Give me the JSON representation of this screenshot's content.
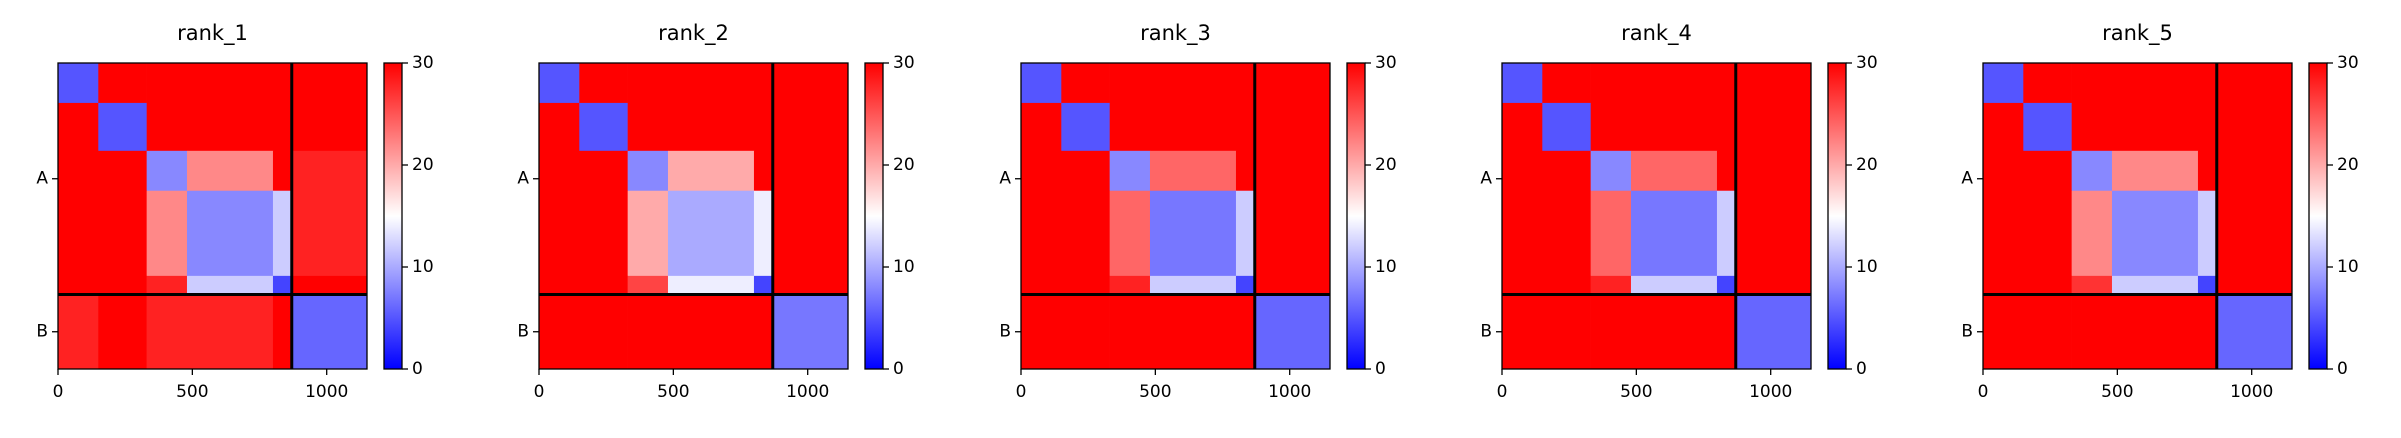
{
  "chart_data": [
    {
      "type": "heatmap",
      "title": "rank_1",
      "edges": [
        0,
        150,
        330,
        480,
        800,
        870,
        1150
      ],
      "z": [
        [
          5,
          30,
          30,
          30,
          30,
          30
        ],
        [
          30,
          5,
          30,
          30,
          30,
          30
        ],
        [
          30,
          30,
          8,
          22,
          30,
          28
        ],
        [
          30,
          30,
          22,
          8,
          12,
          28
        ],
        [
          30,
          30,
          28,
          12,
          4,
          30
        ],
        [
          28,
          30,
          28,
          28,
          30,
          6
        ]
      ],
      "xlim": [
        0,
        1150
      ],
      "ylim": [
        1150,
        0
      ],
      "xticks": [
        0,
        500,
        1000
      ],
      "yticks": [
        {
          "value": 435,
          "label": "A"
        },
        {
          "value": 1010,
          "label": "B"
        }
      ],
      "boundary": 870,
      "clim": [
        0,
        30
      ],
      "cticks": [
        0,
        10,
        20,
        30
      ],
      "cmap": [
        "#0000ff",
        "#ffffff",
        "#ff0000"
      ]
    },
    {
      "type": "heatmap",
      "title": "rank_2",
      "edges": [
        0,
        150,
        330,
        480,
        800,
        870,
        1150
      ],
      "z": [
        [
          5,
          30,
          30,
          30,
          30,
          30
        ],
        [
          30,
          5,
          30,
          30,
          30,
          30
        ],
        [
          30,
          30,
          8,
          20,
          30,
          30
        ],
        [
          30,
          30,
          20,
          10,
          14,
          30
        ],
        [
          30,
          30,
          26,
          14,
          4,
          30
        ],
        [
          30,
          30,
          30,
          30,
          30,
          7
        ]
      ],
      "xlim": [
        0,
        1150
      ],
      "ylim": [
        1150,
        0
      ],
      "xticks": [
        0,
        500,
        1000
      ],
      "yticks": [
        {
          "value": 435,
          "label": "A"
        },
        {
          "value": 1010,
          "label": "B"
        }
      ],
      "boundary": 870,
      "clim": [
        0,
        30
      ],
      "cticks": [
        0,
        10,
        20,
        30
      ],
      "cmap": [
        "#0000ff",
        "#ffffff",
        "#ff0000"
      ]
    },
    {
      "type": "heatmap",
      "title": "rank_3",
      "edges": [
        0,
        150,
        330,
        480,
        800,
        870,
        1150
      ],
      "z": [
        [
          5,
          30,
          30,
          30,
          30,
          30
        ],
        [
          30,
          5,
          30,
          30,
          30,
          30
        ],
        [
          30,
          30,
          8,
          24,
          30,
          30
        ],
        [
          30,
          30,
          24,
          7,
          12,
          30
        ],
        [
          30,
          30,
          28,
          12,
          4,
          30
        ],
        [
          30,
          30,
          30,
          30,
          30,
          6
        ]
      ],
      "xlim": [
        0,
        1150
      ],
      "ylim": [
        1150,
        0
      ],
      "xticks": [
        0,
        500,
        1000
      ],
      "yticks": [
        {
          "value": 435,
          "label": "A"
        },
        {
          "value": 1010,
          "label": "B"
        }
      ],
      "boundary": 870,
      "clim": [
        0,
        30
      ],
      "cticks": [
        0,
        10,
        20,
        30
      ],
      "cmap": [
        "#0000ff",
        "#ffffff",
        "#ff0000"
      ]
    },
    {
      "type": "heatmap",
      "title": "rank_4",
      "edges": [
        0,
        150,
        330,
        480,
        800,
        870,
        1150
      ],
      "z": [
        [
          5,
          30,
          30,
          30,
          30,
          30
        ],
        [
          30,
          5,
          30,
          30,
          30,
          30
        ],
        [
          30,
          30,
          8,
          24,
          30,
          30
        ],
        [
          30,
          30,
          24,
          7,
          12,
          30
        ],
        [
          30,
          30,
          28,
          12,
          4,
          30
        ],
        [
          30,
          30,
          30,
          30,
          30,
          6
        ]
      ],
      "xlim": [
        0,
        1150
      ],
      "ylim": [
        1150,
        0
      ],
      "xticks": [
        0,
        500,
        1000
      ],
      "yticks": [
        {
          "value": 435,
          "label": "A"
        },
        {
          "value": 1010,
          "label": "B"
        }
      ],
      "boundary": 870,
      "clim": [
        0,
        30
      ],
      "cticks": [
        0,
        10,
        20,
        30
      ],
      "cmap": [
        "#0000ff",
        "#ffffff",
        "#ff0000"
      ]
    },
    {
      "type": "heatmap",
      "title": "rank_5",
      "edges": [
        0,
        150,
        330,
        480,
        800,
        870,
        1150
      ],
      "z": [
        [
          5,
          30,
          30,
          30,
          30,
          30
        ],
        [
          30,
          5,
          30,
          30,
          30,
          30
        ],
        [
          30,
          30,
          8,
          22,
          30,
          30
        ],
        [
          30,
          30,
          22,
          8,
          12,
          30
        ],
        [
          30,
          30,
          27,
          12,
          4,
          30
        ],
        [
          30,
          30,
          30,
          30,
          30,
          6
        ]
      ],
      "xlim": [
        0,
        1150
      ],
      "ylim": [
        1150,
        0
      ],
      "xticks": [
        0,
        500,
        1000
      ],
      "yticks": [
        {
          "value": 435,
          "label": "A"
        },
        {
          "value": 1010,
          "label": "B"
        }
      ],
      "boundary": 870,
      "clim": [
        0,
        30
      ],
      "cticks": [
        0,
        10,
        20,
        30
      ],
      "cmap": [
        "#0000ff",
        "#ffffff",
        "#ff0000"
      ]
    }
  ]
}
